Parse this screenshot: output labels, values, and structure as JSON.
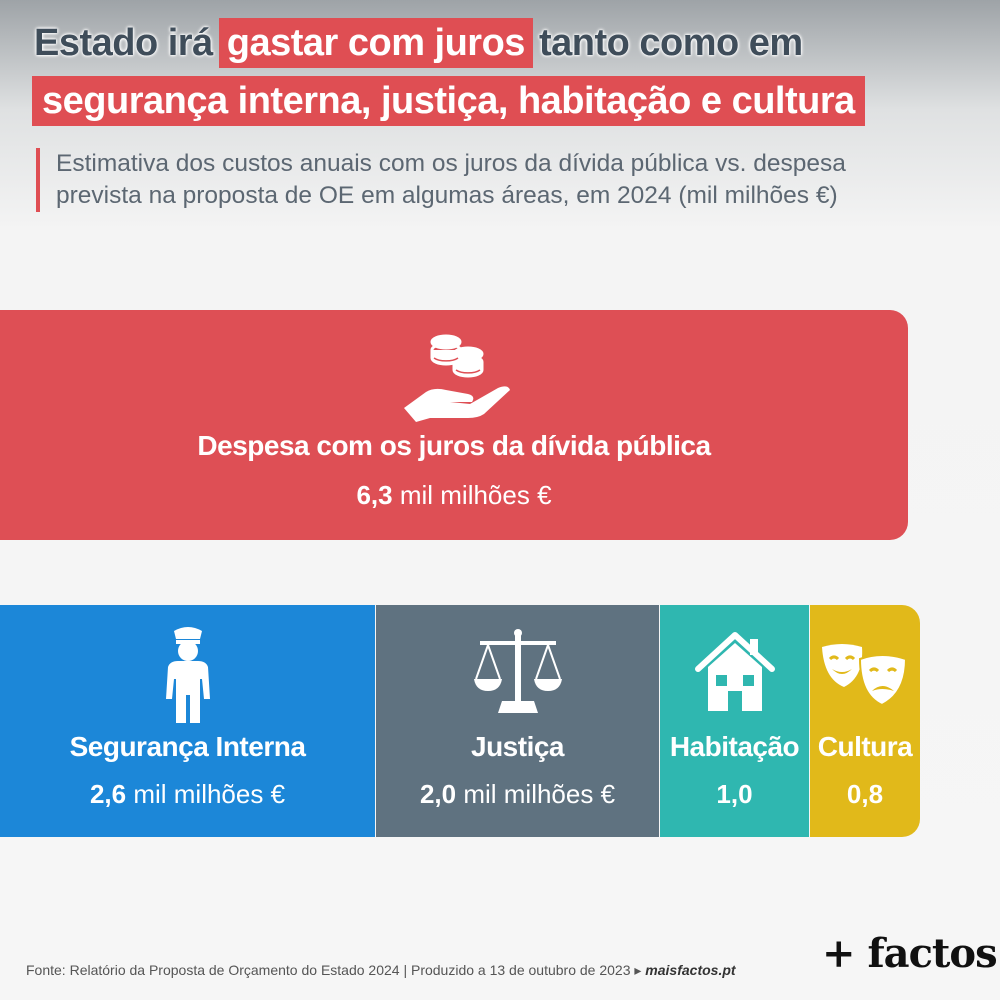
{
  "title": {
    "line1_a": "Estado irá",
    "line1_highlight": "gastar com juros",
    "line1_b": "tanto como em",
    "line2_highlight": "segurança interna, justiça, habitação e cultura"
  },
  "subtitle": {
    "line1": "Estimativa dos custos anuais com os juros da dívida pública vs. despesa",
    "line2": "prevista na proposta de OE em algumas áreas, em 2024 (mil milhões €)"
  },
  "chart_data": {
    "type": "bar",
    "categories": [
      "Despesa com os juros da dívida pública",
      "Segurança Interna",
      "Justiça",
      "Habitação",
      "Cultura"
    ],
    "values": [
      6.3,
      2.6,
      2.0,
      1.0,
      0.8
    ],
    "value_labels": [
      "6,3",
      "2,6",
      "2,0",
      "1,0",
      "0,8"
    ],
    "unit": "mil milhões €",
    "colors": {
      "juros": "#de4f55",
      "seguranca": "#1c87d8",
      "justica": "#5f7280",
      "habitacao": "#2fb7b0",
      "cultura": "#e1b91a"
    },
    "icons": {
      "juros": "coins-hand-icon",
      "seguranca": "police-officer-icon",
      "justica": "scales-icon",
      "habitacao": "house-icon",
      "cultura": "theater-masks-icon"
    }
  },
  "footer": {
    "source": "Fonte: Relatório da Proposta de Orçamento do Estado 2024 | Produzido a 13 de outubro de 2023 ▸",
    "site": "maisfactos.pt"
  },
  "logo": "+ factos"
}
